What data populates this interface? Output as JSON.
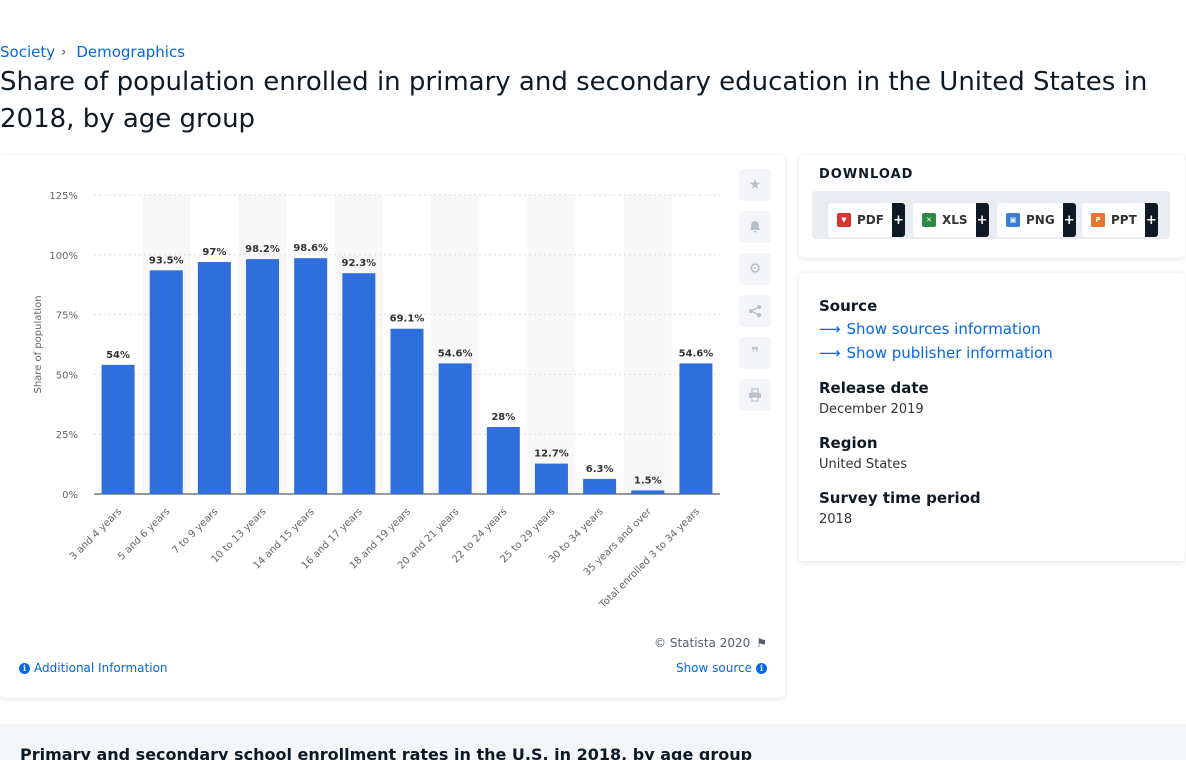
{
  "breadcrumb": {
    "items": [
      "Society",
      "Demographics"
    ],
    "separator": "›"
  },
  "page_title": "Share of population enrolled in primary and secondary education in the United States in 2018, by age group",
  "chart_data": {
    "type": "bar",
    "categories": [
      "3 and 4 years",
      "5 and 6 years",
      "7 to 9 years",
      "10 to 13 years",
      "14 and 15 years",
      "16 and 17 years",
      "18 and 19 years",
      "20 and 21 years",
      "22 to 24 years",
      "25 to 29 years",
      "30 to 34 years",
      "35 years and over",
      "Total enrolled 3 to 34 years"
    ],
    "values": [
      54,
      93.5,
      97,
      98.2,
      98.6,
      92.3,
      69.1,
      54.6,
      28,
      12.7,
      6.3,
      1.5,
      54.6
    ],
    "data_labels": [
      "54%",
      "93.5%",
      "97%",
      "98.2%",
      "98.6%",
      "92.3%",
      "69.1%",
      "54.6%",
      "28%",
      "12.7%",
      "6.3%",
      "1.5%",
      "54.6%"
    ],
    "ylabel": "Share of population",
    "ylim": [
      0,
      125
    ],
    "yticks": [
      0,
      25,
      50,
      75,
      100,
      125
    ],
    "ytick_labels": [
      "0%",
      "25%",
      "50%",
      "75%",
      "100%",
      "125%"
    ],
    "bar_color": "#2f6fdb",
    "grid": true
  },
  "chart_footer": {
    "copyright": "© Statista 2020",
    "additional_info": "Additional Information",
    "show_source": "Show source"
  },
  "download": {
    "title": "DOWNLOAD",
    "buttons": [
      {
        "label": "PDF",
        "plus": "+",
        "color": "#d9352b"
      },
      {
        "label": "XLS",
        "plus": "+",
        "color": "#2e8b46"
      },
      {
        "label": "PNG",
        "plus": "+",
        "color": "#3a7bd5"
      },
      {
        "label": "PPT",
        "plus": "+",
        "color": "#e8742a"
      }
    ]
  },
  "meta": {
    "source_label": "Source",
    "show_sources": "Show sources information",
    "show_publisher": "Show publisher information",
    "release_label": "Release date",
    "release_value": "December 2019",
    "region_label": "Region",
    "region_value": "United States",
    "survey_label": "Survey time period",
    "survey_value": "2018"
  },
  "tools": [
    "star-icon",
    "bell-icon",
    "gear-icon",
    "share-icon",
    "quote-icon",
    "print-icon"
  ],
  "bottom_title": "Primary and secondary school enrollment rates in the U.S. in 2018, by age group"
}
